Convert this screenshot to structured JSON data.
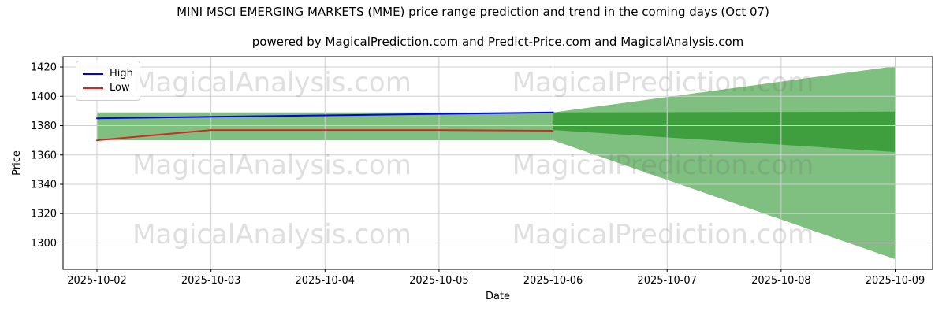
{
  "chart_data": {
    "type": "line",
    "title": "MINI MSCI EMERGING MARKETS (MME) price range prediction and trend in the coming days (Oct 07)",
    "subtitle": "powered by MagicalPrediction.com and Predict-Price.com and MagicalAnalysis.com",
    "xlabel": "Date",
    "ylabel": "Price",
    "x": [
      "2025-10-02",
      "2025-10-03",
      "2025-10-04",
      "2025-10-05",
      "2025-10-06",
      "2025-10-07",
      "2025-10-08",
      "2025-10-09"
    ],
    "yticks": [
      1300,
      1320,
      1340,
      1360,
      1380,
      1400,
      1420
    ],
    "ylim": [
      1282,
      1427
    ],
    "grid": true,
    "legend_position": "upper left",
    "series": [
      {
        "name": "High",
        "color": "#0000ee",
        "x": [
          "2025-10-02",
          "2025-10-03",
          "2025-10-04",
          "2025-10-05",
          "2025-10-06"
        ],
        "values": [
          1385,
          1386,
          1387,
          1388,
          1389
        ]
      },
      {
        "name": "Low",
        "color": "#d62728",
        "x": [
          "2025-10-02",
          "2025-10-03",
          "2025-10-04",
          "2025-10-05",
          "2025-10-06"
        ],
        "values": [
          1370,
          1377,
          1377,
          1377,
          1376.5
        ]
      }
    ],
    "bands": [
      {
        "name": "actual-range-band",
        "color": "rgba(0,128,0,0.5)",
        "points": [
          [
            0,
            1389
          ],
          [
            4,
            1389
          ],
          [
            4,
            1370
          ],
          [
            0,
            1370
          ]
        ]
      },
      {
        "name": "forecast-fan-lower",
        "color": "rgba(0,128,0,0.5)",
        "points": [
          [
            4,
            1389
          ],
          [
            7,
            1389.5
          ],
          [
            7,
            1289
          ],
          [
            4,
            1370
          ]
        ]
      },
      {
        "name": "forecast-fan-upper",
        "color": "rgba(0,128,0,0.5)",
        "points": [
          [
            4,
            1389
          ],
          [
            7,
            1420.5
          ],
          [
            7,
            1362
          ],
          [
            4,
            1377
          ]
        ]
      }
    ],
    "watermarks": [
      "MagicalAnalysis.com",
      "MagicalPrediction.com"
    ]
  }
}
